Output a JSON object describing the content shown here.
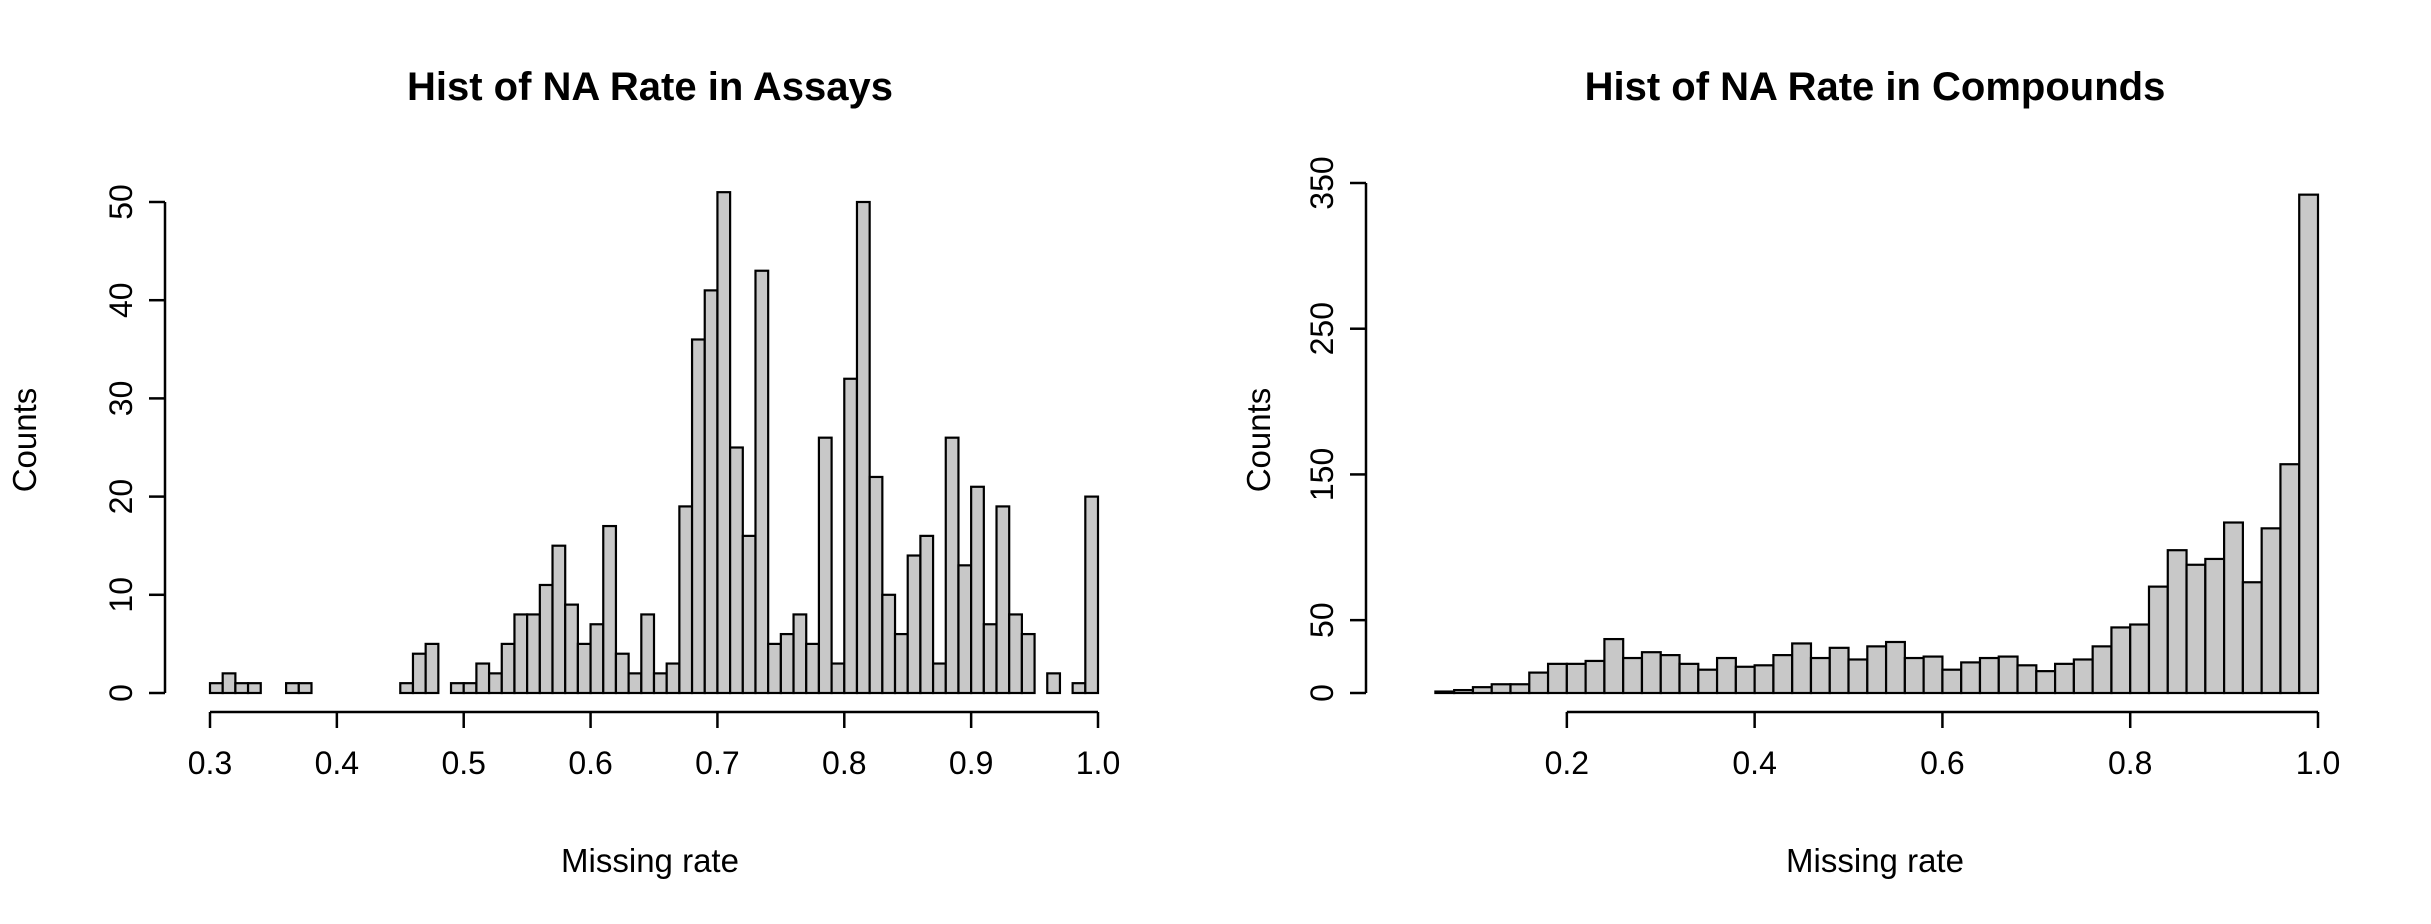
{
  "chart_data": [
    {
      "type": "bar",
      "title": "Hist of NA Rate in Assays",
      "xlabel": "Missing rate",
      "ylabel": "Counts",
      "xlim": [
        0.3,
        1.0
      ],
      "ylim": [
        0,
        50
      ],
      "x_ticks": [
        0.3,
        0.4,
        0.5,
        0.6,
        0.7,
        0.8,
        0.9,
        1.0
      ],
      "x_tick_labels": [
        "0.3",
        "0.4",
        "0.5",
        "0.6",
        "0.7",
        "0.8",
        "0.9",
        "1.0"
      ],
      "y_ticks": [
        0,
        10,
        20,
        30,
        40,
        50
      ],
      "y_tick_labels": [
        "0",
        "10",
        "20",
        "30",
        "40",
        "50"
      ],
      "bin_width": 0.01,
      "bin_start": 0.3,
      "bar_color": "#c8c8c8",
      "values": [
        1,
        2,
        1,
        1,
        0,
        0,
        1,
        1,
        0,
        0,
        0,
        0,
        0,
        0,
        0,
        1,
        4,
        5,
        0,
        1,
        1,
        3,
        2,
        5,
        8,
        8,
        11,
        15,
        9,
        5,
        7,
        17,
        4,
        2,
        8,
        2,
        3,
        19,
        36,
        41,
        51,
        25,
        16,
        43,
        5,
        6,
        8,
        5,
        26,
        3,
        32,
        50,
        22,
        10,
        6,
        14,
        16,
        3,
        26,
        13,
        21,
        7,
        19,
        8,
        6,
        0,
        2,
        0,
        1,
        20
      ]
    },
    {
      "type": "bar",
      "title": "Hist of NA Rate in Compounds",
      "xlabel": "Missing rate",
      "ylabel": "Counts",
      "xlim": [
        0.05,
        1.0
      ],
      "ylim": [
        0,
        350
      ],
      "x_ticks": [
        0.2,
        0.4,
        0.6,
        0.8,
        1.0
      ],
      "x_tick_labels": [
        "0.2",
        "0.4",
        "0.6",
        "0.8",
        "1.0"
      ],
      "y_ticks": [
        0,
        50,
        150,
        250,
        350
      ],
      "y_tick_labels": [
        "0",
        "50",
        "150",
        "250",
        "350"
      ],
      "bin_width": 0.02,
      "bin_start": 0.06,
      "bar_color": "#c8c8c8",
      "values": [
        1,
        2,
        4,
        6,
        6,
        14,
        20,
        20,
        22,
        37,
        24,
        28,
        26,
        20,
        16,
        24,
        18,
        19,
        26,
        34,
        24,
        31,
        23,
        32,
        35,
        24,
        25,
        16,
        21,
        24,
        25,
        19,
        15,
        20,
        23,
        32,
        45,
        47,
        73,
        98,
        88,
        92,
        117,
        76,
        113,
        157,
        342
      ]
    }
  ]
}
